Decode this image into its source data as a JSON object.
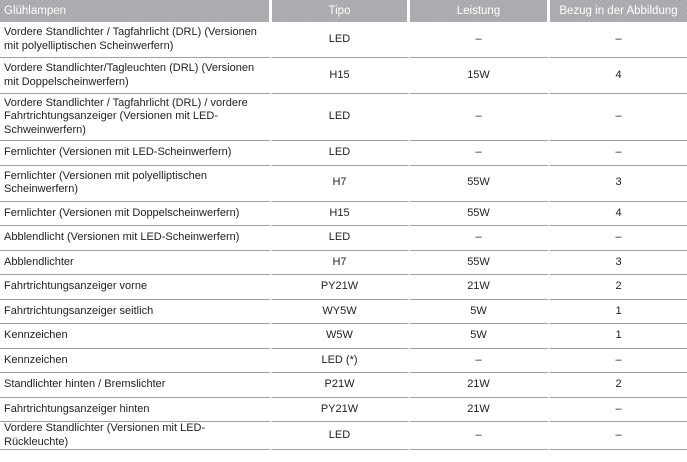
{
  "table": {
    "headers": [
      "Glühlampen",
      "Tipo",
      "Leistung",
      "Bezug in der Abbildung"
    ],
    "rows": [
      {
        "name": "Vordere Standlichter / Tagfahrlicht (DRL) (Versionen mit polyelliptischen Scheinwerfern)",
        "type": "LED",
        "power": "–",
        "ref": "–"
      },
      {
        "name": "Vordere Standlichter/Tagleuchten (DRL) (Versionen mit Doppelscheinwerfern)",
        "type": "H15",
        "power": "15W",
        "ref": "4"
      },
      {
        "name": "Vordere Standlichter / Tagfahrlicht (DRL) / vordere Fahrtrichtungsanzeiger (Versionen mit LED-Schweinwerfern)",
        "type": "LED",
        "power": "–",
        "ref": "–"
      },
      {
        "name": "Fernlichter (Versionen mit LED-Scheinwerfern)",
        "type": "LED",
        "power": "–",
        "ref": "–"
      },
      {
        "name": "Fernlichter (Versionen mit polyelliptischen Scheinwerfern)",
        "type": "H7",
        "power": "55W",
        "ref": "3"
      },
      {
        "name": "Fernlichter (Versionen mit Doppelscheinwerfern)",
        "type": "H15",
        "power": "55W",
        "ref": "4"
      },
      {
        "name": "Abblendlicht (Versionen mit LED-Scheinwerfern)",
        "type": "LED",
        "power": "–",
        "ref": "–"
      },
      {
        "name": "Abblendlichter",
        "type": "H7",
        "power": "55W",
        "ref": "3"
      },
      {
        "name": "Fahrtrichtungsanzeiger vorne",
        "type": "PY21W",
        "power": "21W",
        "ref": "2"
      },
      {
        "name": "Fahrtrichtungsanzeiger seitlich",
        "type": "WY5W",
        "power": "5W",
        "ref": "1"
      },
      {
        "name": "Kennzeichen",
        "type": "W5W",
        "power": "5W",
        "ref": "1"
      },
      {
        "name": "Kennzeichen",
        "type": "LED (*)",
        "power": "–",
        "ref": "–"
      },
      {
        "name": "Standlichter hinten / Bremslichter",
        "type": "P21W",
        "power": "21W",
        "ref": "2"
      },
      {
        "name": "Fahrtrichtungsanzeiger hinten",
        "type": "PY21W",
        "power": "21W",
        "ref": "–"
      },
      {
        "name": "Vordere Standlichter (Versionen mit LED-Rückleuchte)",
        "type": "LED",
        "power": "–",
        "ref": "–"
      }
    ]
  }
}
